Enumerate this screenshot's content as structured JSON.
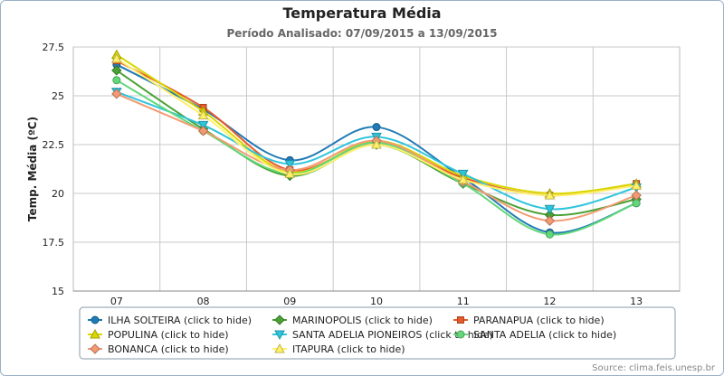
{
  "chart_data": {
    "type": "line",
    "title": "Temperatura Média",
    "subtitle": "Período Analisado: 07/09/2015 a 13/09/2015",
    "xlabel": "",
    "ylabel": "Temp. Média (ºC)",
    "ylim": [
      15,
      27.5
    ],
    "y_ticks": [
      "15",
      "17.5",
      "20",
      "22.5",
      "25",
      "27.5"
    ],
    "y_tick_values": [
      15,
      17.5,
      20,
      22.5,
      25,
      27.5
    ],
    "categories": [
      "07",
      "08",
      "09",
      "10",
      "11",
      "12",
      "13"
    ],
    "grid": true,
    "legend_position": "bottom",
    "series": [
      {
        "name": "ILHA SOLTEIRA",
        "legend": "ILHA SOLTEIRA (click to hide)",
        "color": "#1f7ab5",
        "marker": "circle",
        "values": [
          26.6,
          24.3,
          21.7,
          23.4,
          20.8,
          18.0,
          19.5
        ]
      },
      {
        "name": "MARINOPOLIS",
        "legend": "MARINOPOLIS (click to hide)",
        "color": "#4aa134",
        "marker": "diamond",
        "values": [
          26.3,
          23.3,
          20.9,
          22.5,
          20.5,
          18.9,
          19.7
        ]
      },
      {
        "name": "PARANAPUA",
        "legend": "PARANAPUA (click to hide)",
        "color": "#e55a2b",
        "marker": "square",
        "values": [
          26.8,
          24.4,
          21.2,
          22.6,
          20.8,
          19.9,
          20.5
        ]
      },
      {
        "name": "POPULINA",
        "legend": "POPULINA (click to hide)",
        "color": "#d9d700",
        "marker": "triangle",
        "values": [
          27.1,
          24.2,
          21.1,
          22.7,
          20.9,
          20.0,
          20.5
        ]
      },
      {
        "name": "SANTA ADELIA PIONEIROS",
        "legend": "SANTA ADELIA PIONEIROS (click to hide)",
        "color": "#2ec5dc",
        "marker": "triangle-down",
        "values": [
          25.2,
          23.5,
          21.5,
          22.9,
          21.0,
          19.2,
          20.3
        ]
      },
      {
        "name": "SANTA ADELIA",
        "legend": "SANTA ADELIA (click to hide)",
        "color": "#62d87a",
        "marker": "circle",
        "values": [
          25.8,
          23.2,
          21.0,
          22.6,
          20.5,
          17.9,
          19.5
        ]
      },
      {
        "name": "BONANCA",
        "legend": "BONANCA (click to hide)",
        "color": "#f39a72",
        "marker": "diamond",
        "values": [
          25.1,
          23.2,
          21.2,
          22.7,
          20.6,
          18.6,
          19.9
        ]
      },
      {
        "name": "ITAPURA",
        "legend": "ITAPURA (click to hide)",
        "color": "#fff06a",
        "marker": "triangle",
        "values": [
          26.9,
          24.0,
          21.0,
          22.5,
          20.7,
          19.9,
          20.4
        ]
      }
    ],
    "source": "Source: clima.feis.unesp.br"
  }
}
